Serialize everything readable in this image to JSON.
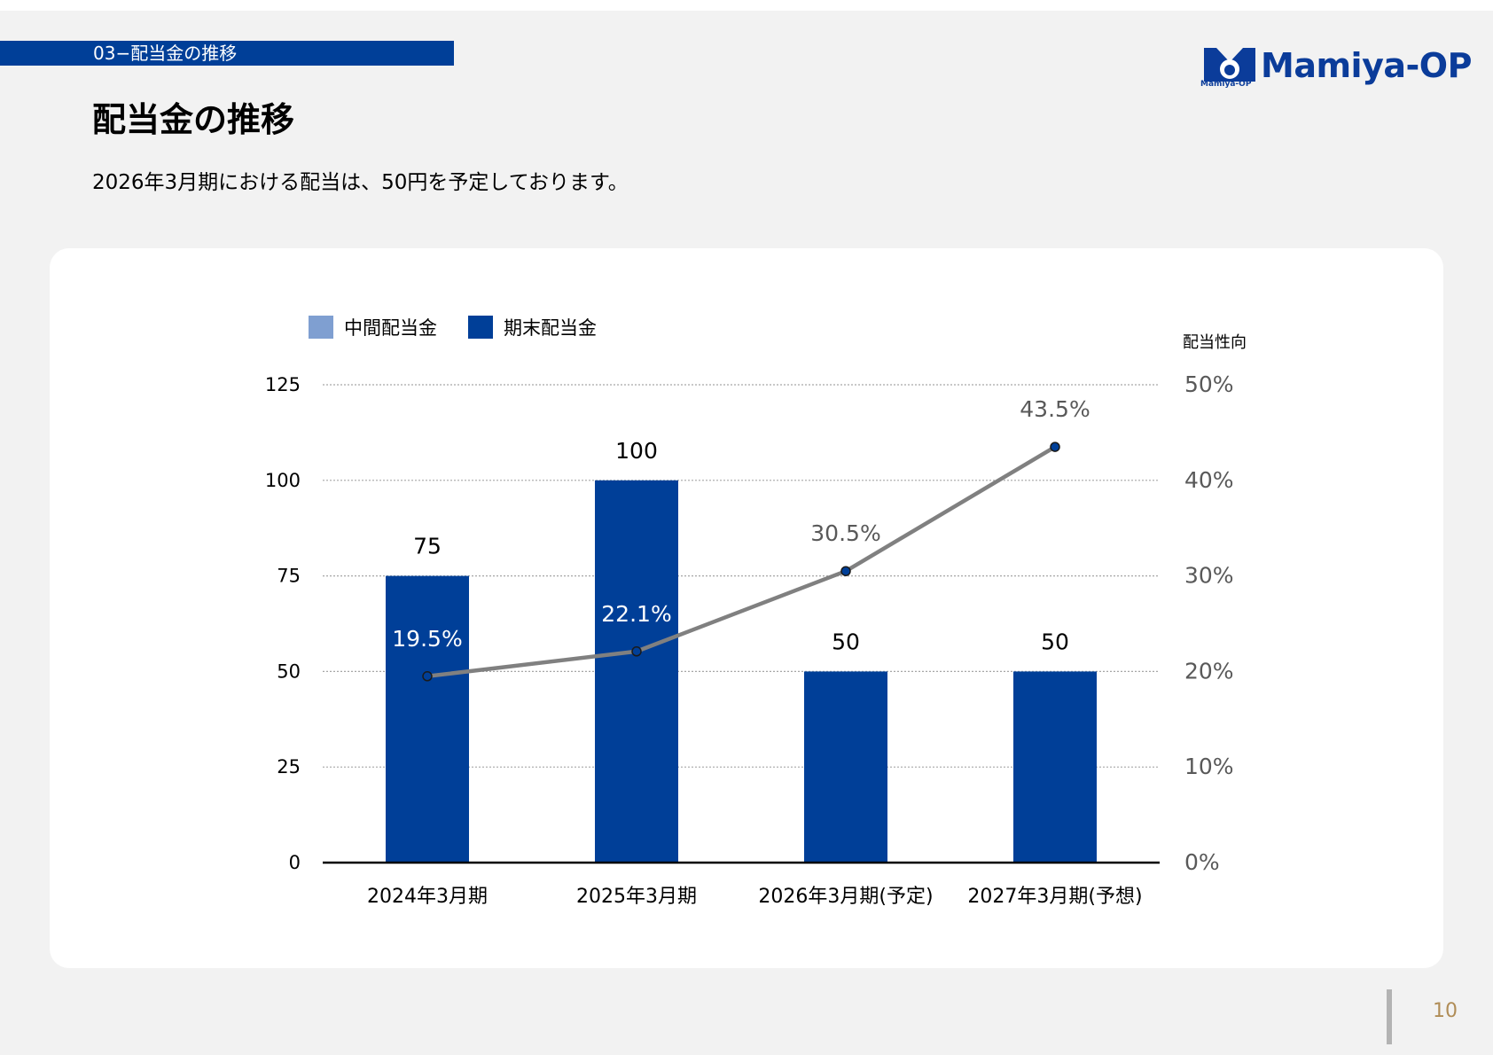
{
  "header": {
    "section_label": "03−配当金の推移",
    "logo_text": "Mamiya-OP",
    "logo_subtext": "Mamiya-OP",
    "title": "配当金の推移",
    "subtitle": "2026年3月期における配当は、50円を予定しております。"
  },
  "chart_data": {
    "type": "bar",
    "categories": [
      "2024年3月期",
      "2025年3月期",
      "2026年3月期(予定)",
      "2027年3月期(予想)"
    ],
    "series": [
      {
        "name": "中間配当金",
        "values": [
          0,
          0,
          0,
          0
        ],
        "color": "#7f9fd1"
      },
      {
        "name": "期末配当金",
        "values": [
          75,
          100,
          50,
          50
        ],
        "color": "#003f98"
      }
    ],
    "bar_labels": [
      "75",
      "100",
      "50",
      "50"
    ],
    "line_series": {
      "name": "配当性向",
      "values": [
        19.5,
        22.1,
        30.5,
        43.5
      ],
      "labels": [
        "19.5%",
        "22.1%",
        "30.5%",
        "43.5%"
      ],
      "color": "#808080"
    },
    "y_left": {
      "ticks": [
        "0",
        "25",
        "50",
        "75",
        "100",
        "125"
      ],
      "ylim": [
        0,
        125
      ]
    },
    "y_right": {
      "label": "配当性向",
      "ticks": [
        "0%",
        "10%",
        "20%",
        "30%",
        "40%",
        "50%"
      ],
      "ylim": [
        0,
        50
      ]
    },
    "grid": true,
    "legend_position": "top-left"
  },
  "footer": {
    "page_number": "10"
  }
}
